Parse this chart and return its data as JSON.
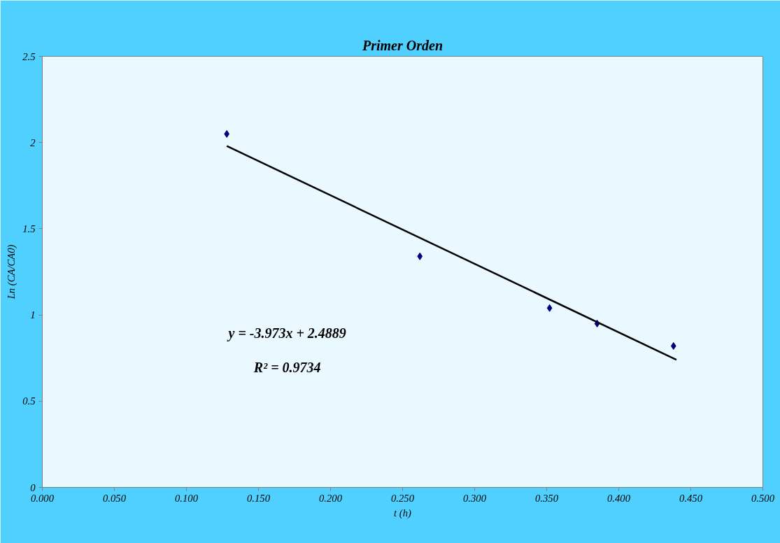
{
  "chart_data": {
    "type": "scatter",
    "title": "Primer Orden",
    "xlabel": "t (h)",
    "ylabel": "Ln (CA/CA0)",
    "xlim": [
      0,
      0.5
    ],
    "ylim": [
      0,
      2.5
    ],
    "xticks": [
      {
        "value": 0,
        "label": "0.000"
      },
      {
        "value": 0.05,
        "label": "0.050"
      },
      {
        "value": 0.1,
        "label": "0.100"
      },
      {
        "value": 0.15,
        "label": "0.150"
      },
      {
        "value": 0.2,
        "label": "0.200"
      },
      {
        "value": 0.25,
        "label": "0.250"
      },
      {
        "value": 0.3,
        "label": "0.300"
      },
      {
        "value": 0.35,
        "label": "0.350"
      },
      {
        "value": 0.4,
        "label": "0.400"
      },
      {
        "value": 0.45,
        "label": "0.450"
      },
      {
        "value": 0.5,
        "label": "0.500"
      }
    ],
    "yticks": [
      0,
      0.5,
      1,
      1.5,
      2,
      2.5
    ],
    "series": [
      {
        "color": "#000080",
        "marker": "diamond",
        "x": [
          0.128,
          0.262,
          0.352,
          0.385,
          0.438
        ],
        "values": [
          2.05,
          1.34,
          1.04,
          0.95,
          0.82
        ]
      },
      {
        "type": "line",
        "color": "#000000",
        "x": [
          0.128,
          0.44
        ],
        "values": [
          1.98,
          0.74
        ]
      }
    ],
    "annotations": [
      "y = -3.973x + 2.4889",
      "R² = 0.9734"
    ],
    "grid": false
  }
}
